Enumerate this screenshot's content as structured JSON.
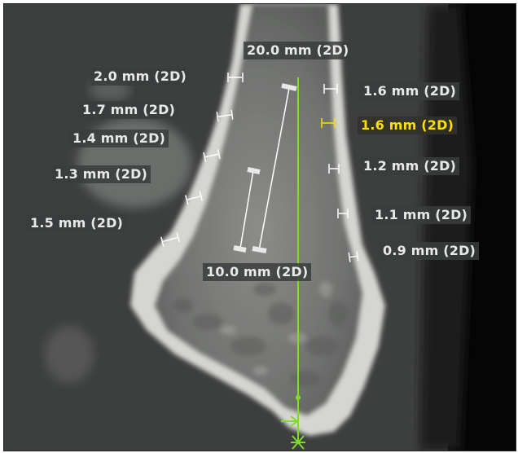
{
  "viewer": {
    "measurements": {
      "total_length": "20.0 mm (2D)",
      "inner_length": "10.0 mm (2D)",
      "left": [
        {
          "text": "2.0 mm (2D)"
        },
        {
          "text": "1.7 mm (2D)"
        },
        {
          "text": "1.4 mm (2D)"
        },
        {
          "text": "1.3 mm (2D)"
        },
        {
          "text": "1.5 mm (2D)"
        }
      ],
      "right": [
        {
          "text": "1.6 mm (2D)"
        },
        {
          "text": "1.6 mm (2D)",
          "selected": true
        },
        {
          "text": "1.2 mm (2D)"
        },
        {
          "text": "1.1 mm (2D)"
        },
        {
          "text": "0.9 mm (2D)"
        }
      ]
    },
    "colors": {
      "background": "#3d3f3e",
      "bone": "#d9d9d9",
      "axis": "#7fdc2a",
      "label_text": "#e9e9e9",
      "label_selected": "#ffe000"
    }
  }
}
